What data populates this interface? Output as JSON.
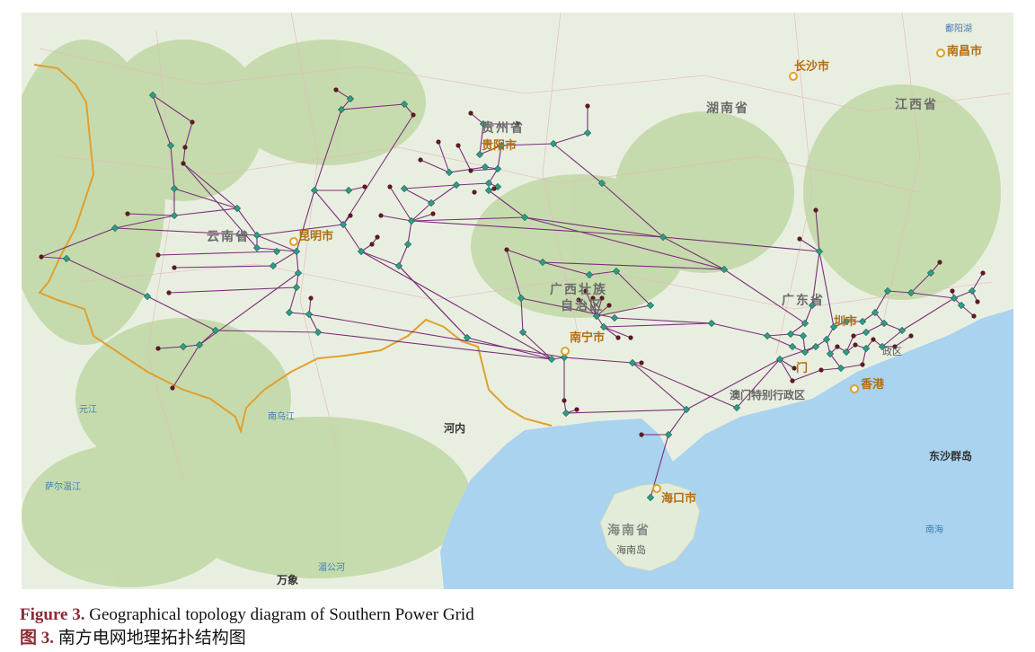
{
  "colors": {
    "land": "#e9efe0",
    "forest": "#bfd6a4",
    "sea": "#a9d3ef",
    "border": "#e0a030",
    "line": "#7a2f7a",
    "node_green": "#2e9e86",
    "node_dark": "#5b1a24"
  },
  "labels": {
    "nanchang": "南昌市",
    "poyang": "鄱阳湖",
    "changsha": "长沙市",
    "hunan": "湖南省",
    "jiangxi": "江西省",
    "guizhou": "贵州省",
    "guiyang": "贵阳市",
    "yunnan": "云南省",
    "kunming": "昆明市",
    "guangxi_1": "广西壮族",
    "guangxi_2": "自治区",
    "nanning": "南宁市",
    "guangdong": "广东省",
    "shenzhen_partial": "圳市",
    "hk_region_partial": "政区",
    "macau_partial": "门",
    "hongkong": "香港",
    "macau_sar": "澳门特别行政区",
    "hanoi": "河内",
    "haikou": "海口市",
    "hainan_prov": "海南省",
    "hainan_island": "海南岛",
    "dongsha": "东沙群岛",
    "nanhai": "南海",
    "wanxiang": "万象",
    "mekong": "湄公河",
    "nanwu": "南乌江",
    "yuanjiang": "元江",
    "irrawaddy": "萨尔温江"
  },
  "caption": {
    "en_label": "Figure 3.",
    "en_text": "Geographical topology diagram of Southern Power Grid",
    "zh_label": "图 3.",
    "zh_text": "南方电网地理拓扑结构图"
  }
}
